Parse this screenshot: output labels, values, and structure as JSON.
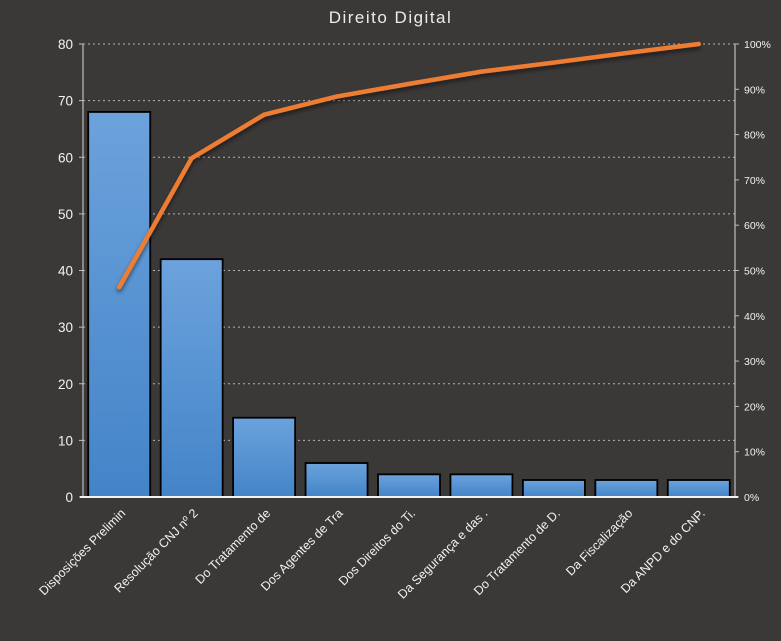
{
  "chart_data": {
    "type": "pareto",
    "title": "Direito Digital",
    "categories": [
      "Disposições Prelimin",
      "Resolução CNJ nº 2",
      "Do Tratamento de",
      "Dos Agentes de Tra",
      "Dos Direitos do Ti.",
      "Da Segurança e das .",
      "Do Tratamento de D.",
      "Da Fiscalização",
      "Da ANPD e do CNP."
    ],
    "series": [
      {
        "type": "bar",
        "axis": "left",
        "values": [
          68,
          42,
          14,
          6,
          4,
          4,
          3,
          3,
          3
        ]
      },
      {
        "type": "line",
        "axis": "right",
        "values": [
          46.3,
          74.8,
          84.4,
          88.4,
          91.2,
          93.9,
          95.9,
          98.0,
          100.0
        ]
      }
    ],
    "left_axis": {
      "min": 0,
      "max": 80,
      "ticks": [
        0,
        10,
        20,
        30,
        40,
        50,
        60,
        70,
        80
      ]
    },
    "right_axis": {
      "min": 0,
      "max": 100,
      "ticks": [
        "0%",
        "10%",
        "20%",
        "30%",
        "40%",
        "50%",
        "60%",
        "70%",
        "80%",
        "90%",
        "100%"
      ]
    },
    "layout": {
      "grid": "dashed-horizontal",
      "x_label_rotation": -45,
      "legend": "none"
    },
    "colors": {
      "background": "#3B3838",
      "bar_top": "#6CA2DC",
      "bar_bottom": "#4384C8",
      "bar_border": "#000000",
      "line": "#ED7D31",
      "grid": "#C8C8C8",
      "axis_line": "#BFBFBF",
      "baseline": "#F2F2F2",
      "text": "#F2F2F2",
      "title_text": "#EDEBEB"
    }
  }
}
